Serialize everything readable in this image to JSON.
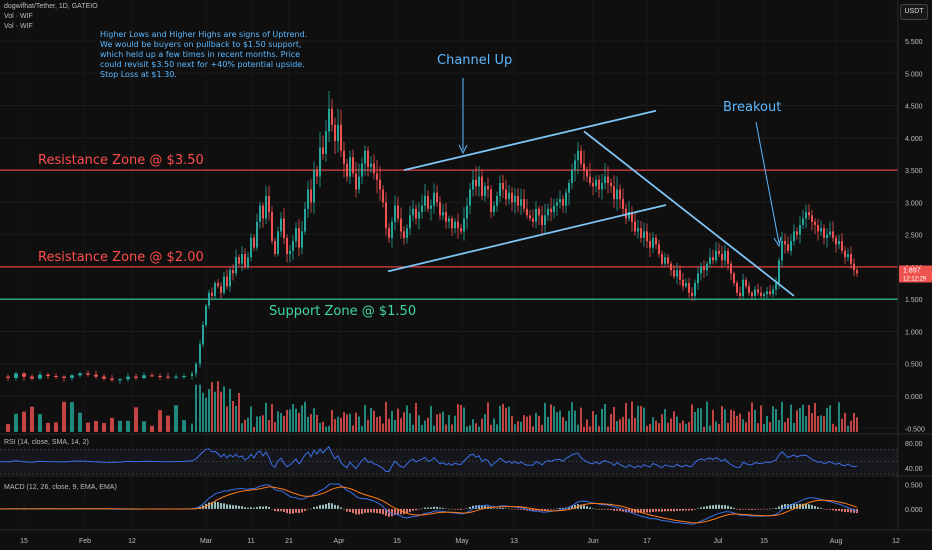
{
  "header": {
    "symbol_line": "dogwifhat/Tether, 1D, GATEIO",
    "vol_line_1": "Vol · WIF",
    "vol_line_2": "Vol · WIF"
  },
  "currency_button": "USDT",
  "note_lines": [
    "Higher Lows and Higher Highs are signs of Uptrend.",
    "We would be buyers on pullback to $1.50 support,",
    "which held up a few times in recent months. Price",
    "could revisit $3.50 next for +40% potential upside.",
    "Stop Loss at $1.30."
  ],
  "annotations": {
    "channel_up": "Channel Up",
    "breakout": "Breakout",
    "resistance_350": "Resistance Zone @ $3.50",
    "resistance_200": "Resistance Zone @ $2.00",
    "support_150": "Support Zone @ $1.50"
  },
  "colors": {
    "background": "#0f0f0f",
    "up": "#26a69a",
    "down": "#ef5350",
    "resistance": "#e04040",
    "support": "#2fb38e",
    "annotation": "#5cb8ff",
    "rsi_line": "#3b6fe6",
    "macd_line": "#3b6fe6",
    "signal_line": "#ff7a1a",
    "price_label_bg": "#ef5350"
  },
  "price_axis": {
    "ticks": [
      "5.500",
      "5.000",
      "4.500",
      "4.000",
      "3.500",
      "3.000",
      "2.500",
      "2.000",
      "1.500",
      "1.000",
      "0.500",
      "0.000",
      "-0.500"
    ],
    "last_price": "1.897",
    "countdown": "12:12:29"
  },
  "rsi": {
    "label": "RSI (14, close, SMA, 14, 2)",
    "ticks": [
      "80.00",
      "40.00"
    ],
    "levels": [
      70,
      50,
      30
    ]
  },
  "macd": {
    "label": "MACD (12, 26, close, 9, EMA, EMA)",
    "ticks": [
      "0.500",
      "0.000"
    ]
  },
  "time_axis": {
    "labels": [
      "15",
      "Feb",
      "12",
      "Mar",
      "11",
      "21",
      "Apr",
      "15",
      "May",
      "13",
      "Jun",
      "17",
      "Jul",
      "15",
      "Aug",
      "12"
    ]
  },
  "chart_data": {
    "type": "candlestick",
    "symbol": "dogwifhat/Tether",
    "interval": "1D",
    "exchange": "GATEIO",
    "price_range": [
      -0.5,
      5.5
    ],
    "horizontal_levels": [
      {
        "label": "Resistance Zone @ $3.50",
        "price": 3.5
      },
      {
        "label": "Resistance Zone @ $2.00",
        "price": 2.0
      },
      {
        "label": "Support Zone @ $1.50",
        "price": 1.5
      }
    ],
    "price_path": [
      [
        0,
        0.3
      ],
      [
        8,
        0.28
      ],
      [
        16,
        0.35
      ],
      [
        24,
        0.3
      ],
      [
        32,
        0.27
      ],
      [
        40,
        0.33
      ],
      [
        48,
        0.31
      ],
      [
        56,
        0.3
      ],
      [
        64,
        0.28
      ],
      [
        72,
        0.32
      ],
      [
        80,
        0.35
      ],
      [
        88,
        0.33
      ],
      [
        96,
        0.3
      ],
      [
        104,
        0.27
      ],
      [
        112,
        0.25
      ],
      [
        120,
        0.26
      ],
      [
        128,
        0.3
      ],
      [
        136,
        0.28
      ],
      [
        144,
        0.32
      ],
      [
        152,
        0.31
      ],
      [
        160,
        0.3
      ],
      [
        168,
        0.29
      ],
      [
        176,
        0.3
      ],
      [
        184,
        0.31
      ],
      [
        192,
        0.35
      ],
      [
        196,
        0.5
      ],
      [
        200,
        0.8
      ],
      [
        203,
        1.1
      ],
      [
        206,
        1.4
      ],
      [
        209,
        1.6
      ],
      [
        212,
        1.55
      ],
      [
        215,
        1.75
      ],
      [
        218,
        1.7
      ],
      [
        221,
        1.6
      ],
      [
        224,
        1.85
      ],
      [
        227,
        1.7
      ],
      [
        230,
        1.95
      ],
      [
        233,
        1.9
      ],
      [
        236,
        2.15
      ],
      [
        239,
        2.05
      ],
      [
        242,
        2.2
      ],
      [
        245,
        2.0
      ],
      [
        248,
        2.15
      ],
      [
        251,
        2.45
      ],
      [
        254,
        2.3
      ],
      [
        257,
        2.7
      ],
      [
        260,
        2.95
      ],
      [
        263,
        2.75
      ],
      [
        266,
        3.1
      ],
      [
        269,
        2.85
      ],
      [
        272,
        2.4
      ],
      [
        275,
        2.2
      ],
      [
        278,
        2.55
      ],
      [
        281,
        2.75
      ],
      [
        284,
        2.45
      ],
      [
        287,
        2.2
      ],
      [
        290,
        2.25
      ],
      [
        293,
        2.4
      ],
      [
        296,
        2.6
      ],
      [
        299,
        2.3
      ],
      [
        302,
        2.55
      ],
      [
        305,
        2.9
      ],
      [
        308,
        3.2
      ],
      [
        311,
        3.0
      ],
      [
        314,
        3.5
      ],
      [
        317,
        3.4
      ],
      [
        320,
        3.85
      ],
      [
        323,
        3.75
      ],
      [
        326,
        4.1
      ],
      [
        329,
        4.45
      ],
      [
        332,
        4.2
      ],
      [
        335,
        3.95
      ],
      [
        338,
        4.2
      ],
      [
        341,
        3.8
      ],
      [
        344,
        3.6
      ],
      [
        347,
        3.4
      ],
      [
        350,
        3.7
      ],
      [
        353,
        3.45
      ],
      [
        356,
        3.2
      ],
      [
        359,
        3.4
      ],
      [
        362,
        3.6
      ],
      [
        365,
        3.8
      ],
      [
        368,
        3.55
      ],
      [
        371,
        3.6
      ],
      [
        374,
        3.45
      ],
      [
        377,
        3.35
      ],
      [
        380,
        3.2
      ],
      [
        383,
        3.0
      ],
      [
        386,
        2.6
      ],
      [
        389,
        2.45
      ],
      [
        392,
        2.7
      ],
      [
        395,
        2.95
      ],
      [
        398,
        2.75
      ],
      [
        401,
        2.55
      ],
      [
        404,
        2.45
      ],
      [
        407,
        2.6
      ],
      [
        410,
        2.8
      ],
      [
        413,
        2.9
      ],
      [
        416,
        2.75
      ],
      [
        419,
        2.85
      ],
      [
        422,
        2.95
      ],
      [
        425,
        3.1
      ],
      [
        428,
        2.9
      ],
      [
        431,
        2.95
      ],
      [
        434,
        3.15
      ],
      [
        437,
        3.0
      ],
      [
        440,
        2.8
      ],
      [
        443,
        2.85
      ],
      [
        446,
        2.7
      ],
      [
        449,
        2.75
      ],
      [
        452,
        2.6
      ],
      [
        455,
        2.7
      ],
      [
        458,
        2.6
      ],
      [
        461,
        2.55
      ],
      [
        464,
        2.75
      ],
      [
        467,
        2.95
      ],
      [
        470,
        3.2
      ],
      [
        473,
        3.35
      ],
      [
        476,
        3.25
      ],
      [
        479,
        3.4
      ],
      [
        482,
        3.1
      ],
      [
        485,
        3.25
      ],
      [
        488,
        3.2
      ],
      [
        491,
        2.85
      ],
      [
        494,
        2.95
      ],
      [
        497,
        3.1
      ],
      [
        500,
        3.3
      ],
      [
        503,
        3.2
      ],
      [
        506,
        3.05
      ],
      [
        509,
        3.15
      ],
      [
        512,
        3.0
      ],
      [
        515,
        3.1
      ],
      [
        518,
        2.95
      ],
      [
        521,
        3.05
      ],
      [
        524,
        2.9
      ],
      [
        527,
        2.8
      ],
      [
        530,
        2.75
      ],
      [
        533,
        2.7
      ],
      [
        536,
        2.9
      ],
      [
        539,
        2.8
      ],
      [
        542,
        2.65
      ],
      [
        545,
        2.8
      ],
      [
        548,
        2.9
      ],
      [
        551,
        2.85
      ],
      [
        554,
        2.95
      ],
      [
        557,
        3.0
      ],
      [
        560,
        3.05
      ],
      [
        563,
        2.95
      ],
      [
        566,
        3.15
      ],
      [
        569,
        3.3
      ],
      [
        572,
        3.5
      ],
      [
        575,
        3.65
      ],
      [
        578,
        3.8
      ],
      [
        581,
        3.6
      ],
      [
        584,
        3.5
      ],
      [
        587,
        3.4
      ],
      [
        590,
        3.3
      ],
      [
        593,
        3.25
      ],
      [
        596,
        3.35
      ],
      [
        599,
        3.2
      ],
      [
        602,
        3.3
      ],
      [
        605,
        3.4
      ],
      [
        608,
        3.3
      ],
      [
        611,
        3.25
      ],
      [
        614,
        3.05
      ],
      [
        617,
        3.2
      ],
      [
        620,
        3.05
      ],
      [
        623,
        2.9
      ],
      [
        626,
        2.75
      ],
      [
        629,
        2.85
      ],
      [
        632,
        2.7
      ],
      [
        635,
        2.55
      ],
      [
        638,
        2.6
      ],
      [
        641,
        2.45
      ],
      [
        644,
        2.55
      ],
      [
        647,
        2.4
      ],
      [
        650,
        2.3
      ],
      [
        653,
        2.45
      ],
      [
        656,
        2.35
      ],
      [
        659,
        2.2
      ],
      [
        662,
        2.05
      ],
      [
        665,
        2.15
      ],
      [
        668,
        2.05
      ],
      [
        671,
        1.95
      ],
      [
        674,
        1.85
      ],
      [
        677,
        1.95
      ],
      [
        680,
        1.8
      ],
      [
        683,
        1.7
      ],
      [
        686,
        1.75
      ],
      [
        689,
        1.6
      ],
      [
        692,
        1.55
      ],
      [
        695,
        1.75
      ],
      [
        698,
        1.9
      ],
      [
        701,
        2.0
      ],
      [
        704,
        1.95
      ],
      [
        707,
        2.05
      ],
      [
        710,
        2.15
      ],
      [
        713,
        2.1
      ],
      [
        716,
        2.25
      ],
      [
        719,
        2.2
      ],
      [
        722,
        2.1
      ],
      [
        725,
        2.25
      ],
      [
        728,
        2.05
      ],
      [
        731,
        1.9
      ],
      [
        734,
        1.75
      ],
      [
        737,
        1.6
      ],
      [
        740,
        1.55
      ],
      [
        743,
        1.8
      ],
      [
        746,
        1.7
      ],
      [
        749,
        1.6
      ],
      [
        752,
        1.55
      ],
      [
        755,
        1.65
      ],
      [
        758,
        1.6
      ],
      [
        761,
        1.55
      ],
      [
        764,
        1.58
      ],
      [
        767,
        1.62
      ],
      [
        770,
        1.58
      ],
      [
        773,
        1.65
      ],
      [
        776,
        1.75
      ],
      [
        779,
        2.1
      ],
      [
        782,
        2.4
      ],
      [
        785,
        2.35
      ],
      [
        788,
        2.25
      ],
      [
        791,
        2.4
      ],
      [
        794,
        2.55
      ],
      [
        797,
        2.5
      ],
      [
        800,
        2.65
      ],
      [
        803,
        2.75
      ],
      [
        806,
        2.85
      ],
      [
        809,
        2.8
      ],
      [
        812,
        2.7
      ],
      [
        815,
        2.65
      ],
      [
        818,
        2.55
      ],
      [
        821,
        2.6
      ],
      [
        824,
        2.45
      ],
      [
        827,
        2.5
      ],
      [
        830,
        2.55
      ],
      [
        833,
        2.45
      ],
      [
        836,
        2.35
      ],
      [
        839,
        2.4
      ],
      [
        842,
        2.25
      ],
      [
        845,
        2.15
      ],
      [
        848,
        2.2
      ],
      [
        851,
        2.05
      ],
      [
        854,
        1.95
      ],
      [
        857,
        1.9
      ]
    ],
    "trendlines": [
      {
        "name": "Channel Up upper",
        "from": [
          404,
          3.5
        ],
        "to": [
          656,
          4.42
        ]
      },
      {
        "name": "Channel Up lower",
        "from": [
          388,
          1.93
        ],
        "to": [
          666,
          2.96
        ]
      },
      {
        "name": "Breakout downtrend",
        "from": [
          584,
          4.1
        ],
        "to": [
          794,
          1.55
        ]
      }
    ],
    "rsi_range": [
      30,
      85
    ],
    "macd_range": [
      -0.35,
      0.55
    ]
  }
}
